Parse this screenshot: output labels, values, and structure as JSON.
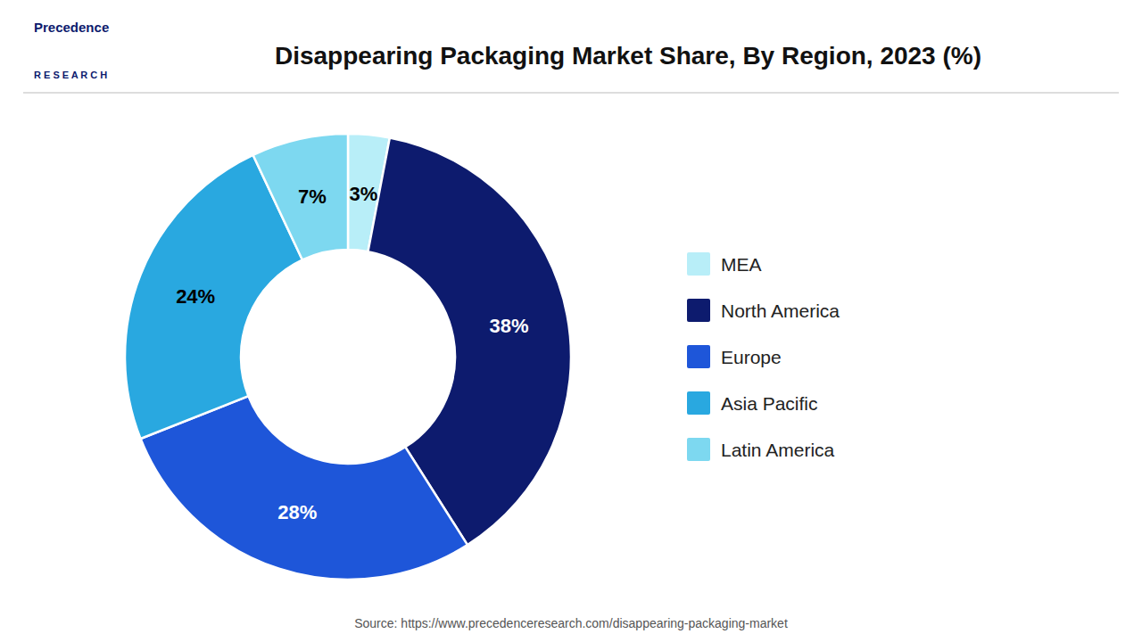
{
  "chart_data": {
    "type": "pie",
    "title": "Disappearing Packaging Market Share, By Region, 2023 (%)",
    "categories": [
      "MEA",
      "North America",
      "Europe",
      "Asia Pacific",
      "Latin America"
    ],
    "values": [
      3,
      38,
      28,
      24,
      7
    ],
    "value_labels": [
      "3%",
      "38%",
      "28%",
      "24%",
      "7%"
    ],
    "data_labels": true,
    "colors": [
      "#b8eef8",
      "#0d1b6e",
      "#1e56d9",
      "#29a8e0",
      "#7dd8f0"
    ],
    "legend": "right",
    "annotations": [
      "Precedence",
      "R E S E A R C H",
      "Source: https://www.precedenceresearch.com/disappearing-packaging-market"
    ]
  }
}
